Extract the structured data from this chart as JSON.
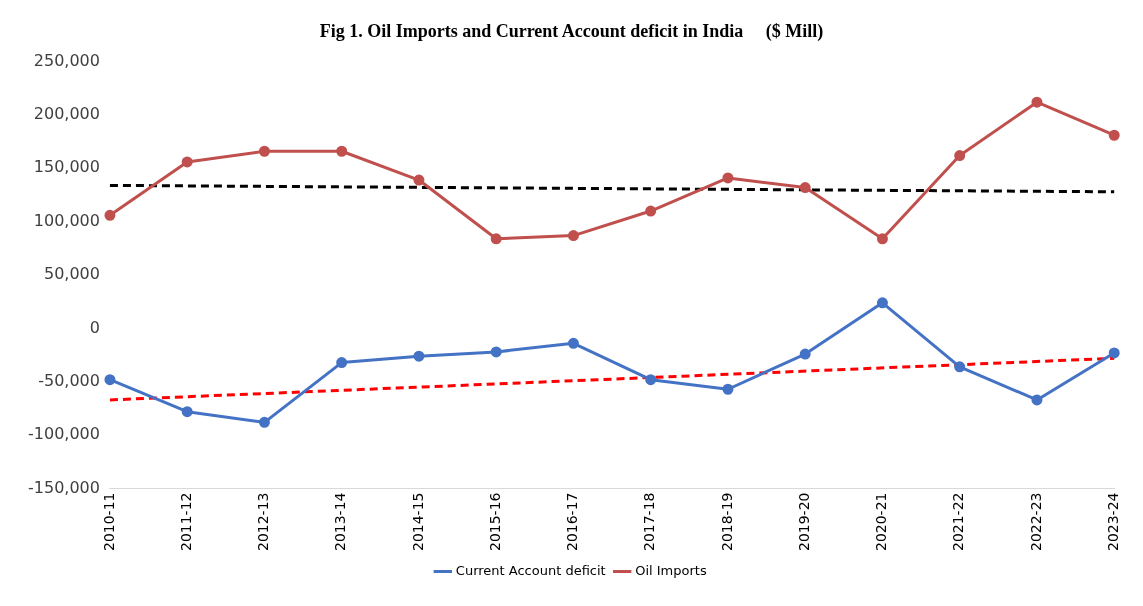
{
  "chart_data": {
    "type": "line",
    "title": "Fig 1. Oil Imports and Current Account deficit in India     ($ Mill)",
    "categories": [
      "2010-11",
      "2011-12",
      "2012-13",
      "2013-14",
      "2014-15",
      "2015-16",
      "2016-17",
      "2017-18",
      "2018-19",
      "2019-20",
      "2020-21",
      "2021-22",
      "2022-23",
      "2023-24"
    ],
    "series": [
      {
        "name": "Current Account deficit",
        "color": "#4472c4",
        "marker": "circle",
        "values": [
          -48000,
          -78000,
          -88000,
          -32000,
          -26000,
          -22000,
          -14000,
          -48000,
          -57000,
          -24000,
          24000,
          -36000,
          -67000,
          -23000
        ]
      },
      {
        "name": "Oil Imports",
        "color": "#c0504d",
        "marker": "circle",
        "values": [
          106000,
          156000,
          166000,
          166000,
          139000,
          84000,
          87000,
          110000,
          141000,
          132000,
          84000,
          162000,
          212000,
          181000
        ]
      },
      {
        "type": "line",
        "color": "#000000",
        "line_style": "dashed",
        "marker": "none",
        "values": [
          134000,
          null,
          null,
          null,
          null,
          null,
          null,
          null,
          null,
          null,
          null,
          null,
          null,
          128000
        ]
      },
      {
        "type": "line",
        "color": "#ff0000",
        "line_style": "dashed",
        "marker": "none",
        "values": [
          -67000,
          null,
          null,
          null,
          null,
          null,
          null,
          null,
          null,
          null,
          null,
          null,
          null,
          -28000
        ]
      }
    ],
    "ylim": [
      -150000,
      250000
    ],
    "yticks": [
      {
        "value": -150000,
        "label": "-150,000"
      },
      {
        "value": -100000,
        "label": "-100,000"
      },
      {
        "value": -50000,
        "label": "-50,000"
      },
      0,
      {
        "value": 50000,
        "label": "50,000"
      },
      {
        "value": 100000,
        "label": "100,000"
      },
      {
        "value": 150000,
        "label": "150,000"
      },
      {
        "value": 200000,
        "label": "200,000"
      },
      {
        "value": 250000,
        "label": "250,000"
      }
    ],
    "grid": false,
    "legend": "bottom"
  }
}
